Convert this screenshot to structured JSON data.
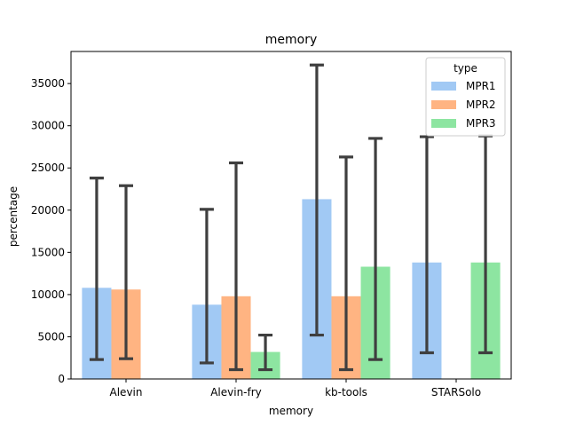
{
  "chart_data": {
    "type": "bar",
    "title": "memory",
    "xlabel": "memory",
    "ylabel": "percentage",
    "categories": [
      "Alevin",
      "Alevin-fry",
      "kb-tools",
      "STARSolo"
    ],
    "ylim": [
      0,
      38800
    ],
    "yticks": [
      0,
      5000,
      10000,
      15000,
      20000,
      25000,
      30000,
      35000
    ],
    "grid": false,
    "legend": {
      "title": "type",
      "placement": "top-right"
    },
    "series": [
      {
        "name": "MPR1",
        "color": "#a1c9f4",
        "values": [
          10800,
          8800,
          21300,
          13800
        ],
        "err_low": [
          2300,
          1900,
          5200,
          3100
        ],
        "err_high": [
          23800,
          20100,
          37200,
          28700
        ]
      },
      {
        "name": "MPR2",
        "color": "#ffb482",
        "values": [
          10600,
          9800,
          9800,
          null
        ],
        "err_low": [
          2400,
          1100,
          1100,
          null
        ],
        "err_high": [
          22900,
          25600,
          26300,
          null
        ]
      },
      {
        "name": "MPR3",
        "color": "#8de5a1",
        "values": [
          null,
          3200,
          13300,
          13800
        ],
        "err_low": [
          null,
          1100,
          2300,
          3100
        ],
        "err_high": [
          null,
          5200,
          28500,
          28800
        ]
      }
    ],
    "error_bar_color": "#3f3f3f"
  }
}
